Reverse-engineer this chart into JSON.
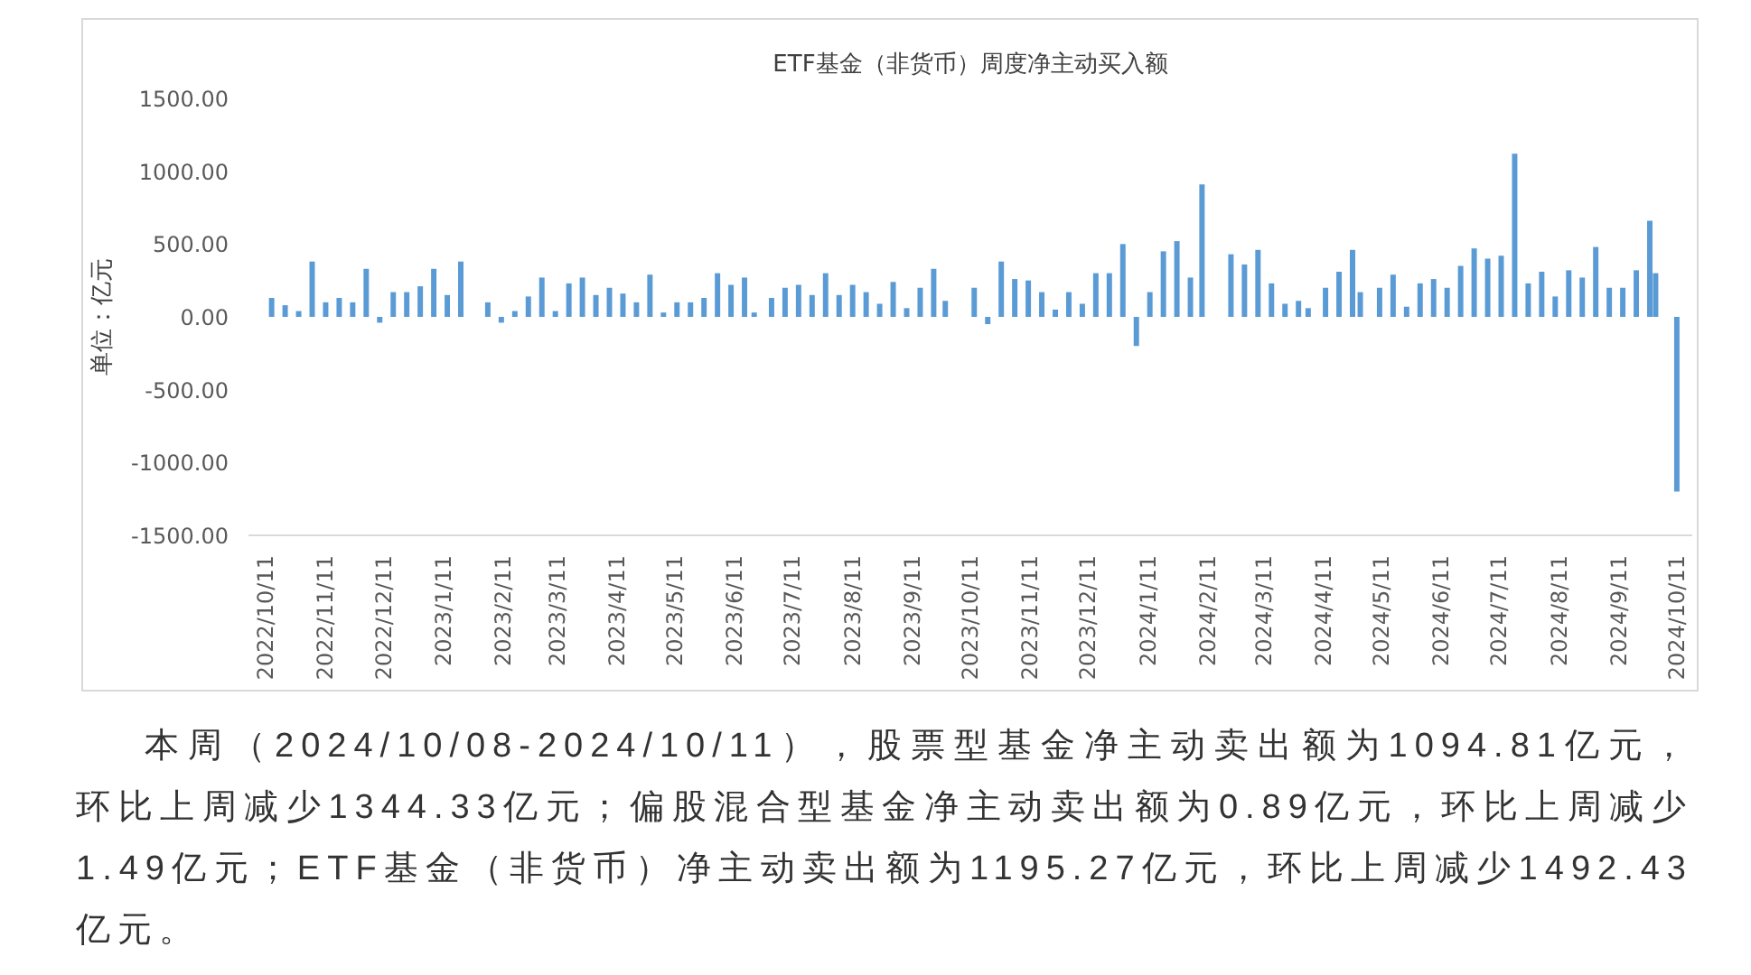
{
  "chart_data": {
    "type": "bar",
    "title": "ETF基金（非货币）周度净主动买入额",
    "ylabel": "单位：亿元",
    "x": [
      "2022-10-14",
      "2022-10-21",
      "2022-10-28",
      "2022-11-04",
      "2022-11-11",
      "2022-11-18",
      "2022-11-25",
      "2022-12-02",
      "2022-12-09",
      "2022-12-16",
      "2022-12-23",
      "2022-12-30",
      "2023-01-06",
      "2023-01-13",
      "2023-01-20",
      "2023-02-03",
      "2023-02-10",
      "2023-02-17",
      "2023-02-24",
      "2023-03-03",
      "2023-03-10",
      "2023-03-17",
      "2023-03-24",
      "2023-03-31",
      "2023-04-07",
      "2023-04-14",
      "2023-04-21",
      "2023-04-28",
      "2023-05-05",
      "2023-05-12",
      "2023-05-19",
      "2023-05-26",
      "2023-06-02",
      "2023-06-09",
      "2023-06-16",
      "2023-06-21",
      "2023-06-30",
      "2023-07-07",
      "2023-07-14",
      "2023-07-21",
      "2023-07-28",
      "2023-08-04",
      "2023-08-11",
      "2023-08-18",
      "2023-08-25",
      "2023-09-01",
      "2023-09-08",
      "2023-09-15",
      "2023-09-22",
      "2023-09-28",
      "2023-10-13",
      "2023-10-20",
      "2023-10-27",
      "2023-11-03",
      "2023-11-10",
      "2023-11-17",
      "2023-11-24",
      "2023-12-01",
      "2023-12-08",
      "2023-12-15",
      "2023-12-22",
      "2023-12-29",
      "2024-01-05",
      "2024-01-12",
      "2024-01-19",
      "2024-01-26",
      "2024-02-02",
      "2024-02-08",
      "2024-02-23",
      "2024-03-01",
      "2024-03-08",
      "2024-03-15",
      "2024-03-22",
      "2024-03-29",
      "2024-04-03",
      "2024-04-12",
      "2024-04-19",
      "2024-04-26",
      "2024-04-30",
      "2024-05-10",
      "2024-05-17",
      "2024-05-24",
      "2024-05-31",
      "2024-06-07",
      "2024-06-14",
      "2024-06-21",
      "2024-06-28",
      "2024-07-05",
      "2024-07-12",
      "2024-07-19",
      "2024-07-26",
      "2024-08-02",
      "2024-08-09",
      "2024-08-16",
      "2024-08-23",
      "2024-08-30",
      "2024-09-06",
      "2024-09-13",
      "2024-09-20",
      "2024-09-27",
      "2024-09-30",
      "2024-10-11"
    ],
    "values": [
      130,
      80,
      40,
      380,
      100,
      130,
      100,
      330,
      -40,
      170,
      170,
      210,
      330,
      150,
      380,
      100,
      -40,
      40,
      140,
      270,
      40,
      230,
      270,
      150,
      200,
      160,
      100,
      290,
      30,
      100,
      100,
      130,
      300,
      220,
      270,
      30,
      130,
      200,
      220,
      150,
      300,
      150,
      220,
      170,
      90,
      240,
      60,
      200,
      330,
      110,
      200,
      -50,
      380,
      260,
      250,
      170,
      50,
      170,
      90,
      300,
      300,
      500,
      -200,
      170,
      450,
      520,
      270,
      910,
      430,
      360,
      460,
      230,
      90,
      110,
      60,
      200,
      310,
      460,
      170,
      200,
      290,
      70,
      230,
      260,
      200,
      350,
      470,
      400,
      420,
      1120,
      230,
      310,
      140,
      320,
      270,
      480,
      200,
      200,
      320,
      660,
      300,
      -1200
    ],
    "color": "#5b9bd5",
    "xlim": [
      "2022-10-02",
      "2024-10-19"
    ],
    "xticks": [
      {
        "value": "2022-10-11",
        "label": "2022/10/11"
      },
      {
        "value": "2022-11-11",
        "label": "2022/11/11"
      },
      {
        "value": "2022-12-11",
        "label": "2022/12/11"
      },
      {
        "value": "2023-01-11",
        "label": "2023/1/11"
      },
      {
        "value": "2023-02-11",
        "label": "2023/2/11"
      },
      {
        "value": "2023-03-11",
        "label": "2023/3/11"
      },
      {
        "value": "2023-04-11",
        "label": "2023/4/11"
      },
      {
        "value": "2023-05-11",
        "label": "2023/5/11"
      },
      {
        "value": "2023-06-11",
        "label": "2023/6/11"
      },
      {
        "value": "2023-07-11",
        "label": "2023/7/11"
      },
      {
        "value": "2023-08-11",
        "label": "2023/8/11"
      },
      {
        "value": "2023-09-11",
        "label": "2023/9/11"
      },
      {
        "value": "2023-10-11",
        "label": "2023/10/11"
      },
      {
        "value": "2023-11-11",
        "label": "2023/11/11"
      },
      {
        "value": "2023-12-11",
        "label": "2023/12/11"
      },
      {
        "value": "2024-01-11",
        "label": "2024/1/11"
      },
      {
        "value": "2024-02-11",
        "label": "2024/2/11"
      },
      {
        "value": "2024-03-11",
        "label": "2024/3/11"
      },
      {
        "value": "2024-04-11",
        "label": "2024/4/11"
      },
      {
        "value": "2024-05-11",
        "label": "2024/5/11"
      },
      {
        "value": "2024-06-11",
        "label": "2024/6/11"
      },
      {
        "value": "2024-07-11",
        "label": "2024/7/11"
      },
      {
        "value": "2024-08-11",
        "label": "2024/8/11"
      },
      {
        "value": "2024-09-11",
        "label": "2024/9/11"
      },
      {
        "value": "2024-10-11",
        "label": "2024/10/11"
      }
    ],
    "ylim": [
      -1500,
      1500
    ],
    "yticks": [
      {
        "value": -1500,
        "label": "-1500.00"
      },
      {
        "value": -1000,
        "label": "-1000.00"
      },
      {
        "value": -500,
        "label": "-500.00"
      },
      {
        "value": 0,
        "label": "0.00"
      },
      {
        "value": 500,
        "label": "500.00"
      },
      {
        "value": 1000,
        "label": "1000.00"
      },
      {
        "value": 1500,
        "label": "1500.00"
      }
    ],
    "grid": false,
    "annotations": [
      "本周（2024/10/08-2024/10/11），股票型基金净主动卖出额为1094.81亿元，环比上周减少1344.33亿元；偏股混合型基金净主动卖出额为0.89亿元，环比上周减少1.49亿元；ETF基金（非货币）净主动卖出额为1195.27亿元，环比上周减少1492.43亿元。"
    ]
  }
}
